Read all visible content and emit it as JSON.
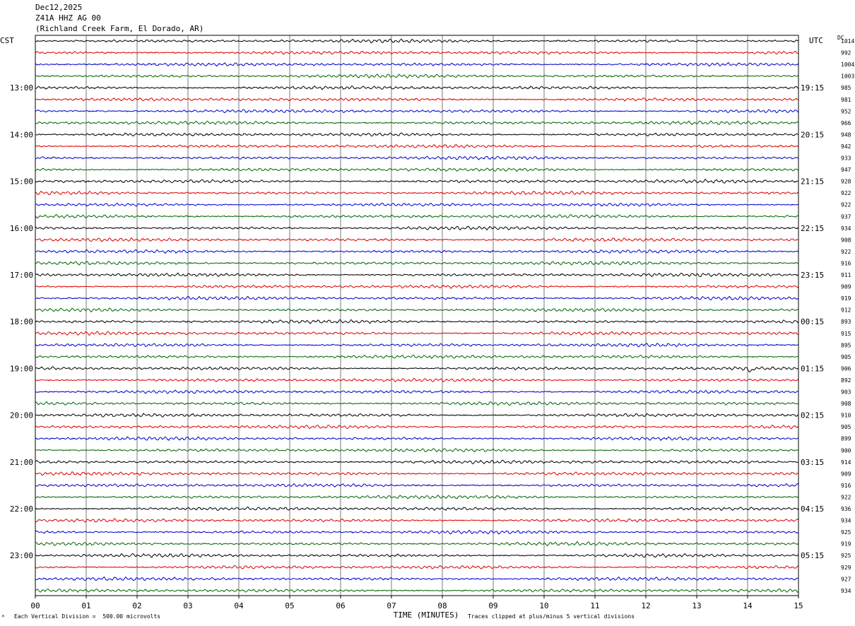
{
  "header": {
    "date": "Dec12,2025",
    "station": "Z41A HHZ AG 00",
    "location": "(Richland Creek Farm, El Dorado, AR)"
  },
  "left_tz": "CST",
  "right_tz": "UTC",
  "right_col_header": "DC",
  "footer": {
    "scale": "Each Vertical Division =  500.00 microvolts",
    "clip_note": "Traces clipped at plus/minus 5 vertical divisions",
    "mark": "ᴹ"
  },
  "trace_colors": [
    "#000000",
    "#dd0000",
    "#0000cc",
    "#006600"
  ],
  "chart_data": {
    "type": "line",
    "title": "",
    "xlabel": "TIME (MINUTES)",
    "ylabel": "",
    "xlim": [
      0,
      15
    ],
    "x_ticks": [
      "00",
      "01",
      "02",
      "03",
      "04",
      "05",
      "06",
      "07",
      "08",
      "09",
      "10",
      "11",
      "12",
      "13",
      "14",
      "15"
    ],
    "minutes_per_row": 15,
    "row_count": 48,
    "left_hour_labels": [
      {
        "row": 4,
        "label": "13:00"
      },
      {
        "row": 8,
        "label": "14:00"
      },
      {
        "row": 12,
        "label": "15:00"
      },
      {
        "row": 16,
        "label": "16:00"
      },
      {
        "row": 20,
        "label": "17:00"
      },
      {
        "row": 24,
        "label": "18:00"
      },
      {
        "row": 28,
        "label": "19:00"
      },
      {
        "row": 32,
        "label": "20:00"
      },
      {
        "row": 36,
        "label": "21:00"
      },
      {
        "row": 40,
        "label": "22:00"
      },
      {
        "row": 44,
        "label": "23:00"
      }
    ],
    "right_hour_labels": [
      {
        "row": 4,
        "label": "19:15"
      },
      {
        "row": 8,
        "label": "20:15"
      },
      {
        "row": 12,
        "label": "21:15"
      },
      {
        "row": 16,
        "label": "22:15"
      },
      {
        "row": 20,
        "label": "23:15"
      },
      {
        "row": 24,
        "label": "00:15"
      },
      {
        "row": 28,
        "label": "01:15"
      },
      {
        "row": 32,
        "label": "02:15"
      },
      {
        "row": 36,
        "label": "03:15"
      },
      {
        "row": 40,
        "label": "04:15"
      },
      {
        "row": 44,
        "label": "05:15"
      }
    ],
    "dc_offsets": [
      "1014",
      "992",
      "1004",
      "1003",
      "985",
      "981",
      "952",
      "966",
      "948",
      "942",
      "933",
      "947",
      "928",
      "922",
      "922",
      "937",
      "934",
      "908",
      "922",
      "916",
      "911",
      "909",
      "919",
      "912",
      "893",
      "915",
      "895",
      "905",
      "906",
      "892",
      "903",
      "908",
      "910",
      "905",
      "899",
      "900",
      "914",
      "909",
      "916",
      "922",
      "936",
      "934",
      "925",
      "919",
      "925",
      "929",
      "927",
      "934"
    ],
    "events": [
      {
        "row": 28,
        "minute": 14.05,
        "note": "short transient spike"
      }
    ]
  }
}
